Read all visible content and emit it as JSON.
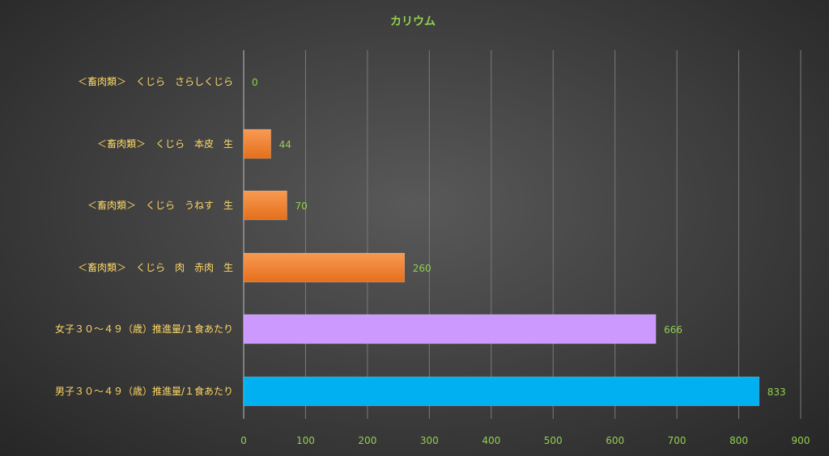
{
  "chart_data": {
    "type": "bar",
    "orientation": "horizontal",
    "title": "カリウム",
    "categories": [
      "＜畜肉類＞　くじら　さらしくじら",
      "＜畜肉類＞　くじら　本皮　生",
      "＜畜肉類＞　くじら　うねす　生",
      "＜畜肉類＞　くじら　肉　赤肉　生",
      "女子３０～４９（歳）推進量/１食あたり",
      "男子３０～４９（歳）推進量/１食あたり"
    ],
    "values": [
      0,
      44,
      70,
      260,
      666,
      833
    ],
    "bar_colors": [
      "#f58233",
      "#f58233",
      "#f58233",
      "#f58233",
      "#cc99ff",
      "#00b0f0"
    ],
    "xlim": [
      0,
      900
    ],
    "x_ticks": [
      0,
      100,
      200,
      300,
      400,
      500,
      600,
      700,
      800,
      900
    ],
    "grid": true,
    "legend": "none",
    "colors": {
      "title": "#92d050",
      "category_labels": "#ffd966",
      "tick_labels": "#92d050",
      "data_labels": "#92d050"
    }
  }
}
